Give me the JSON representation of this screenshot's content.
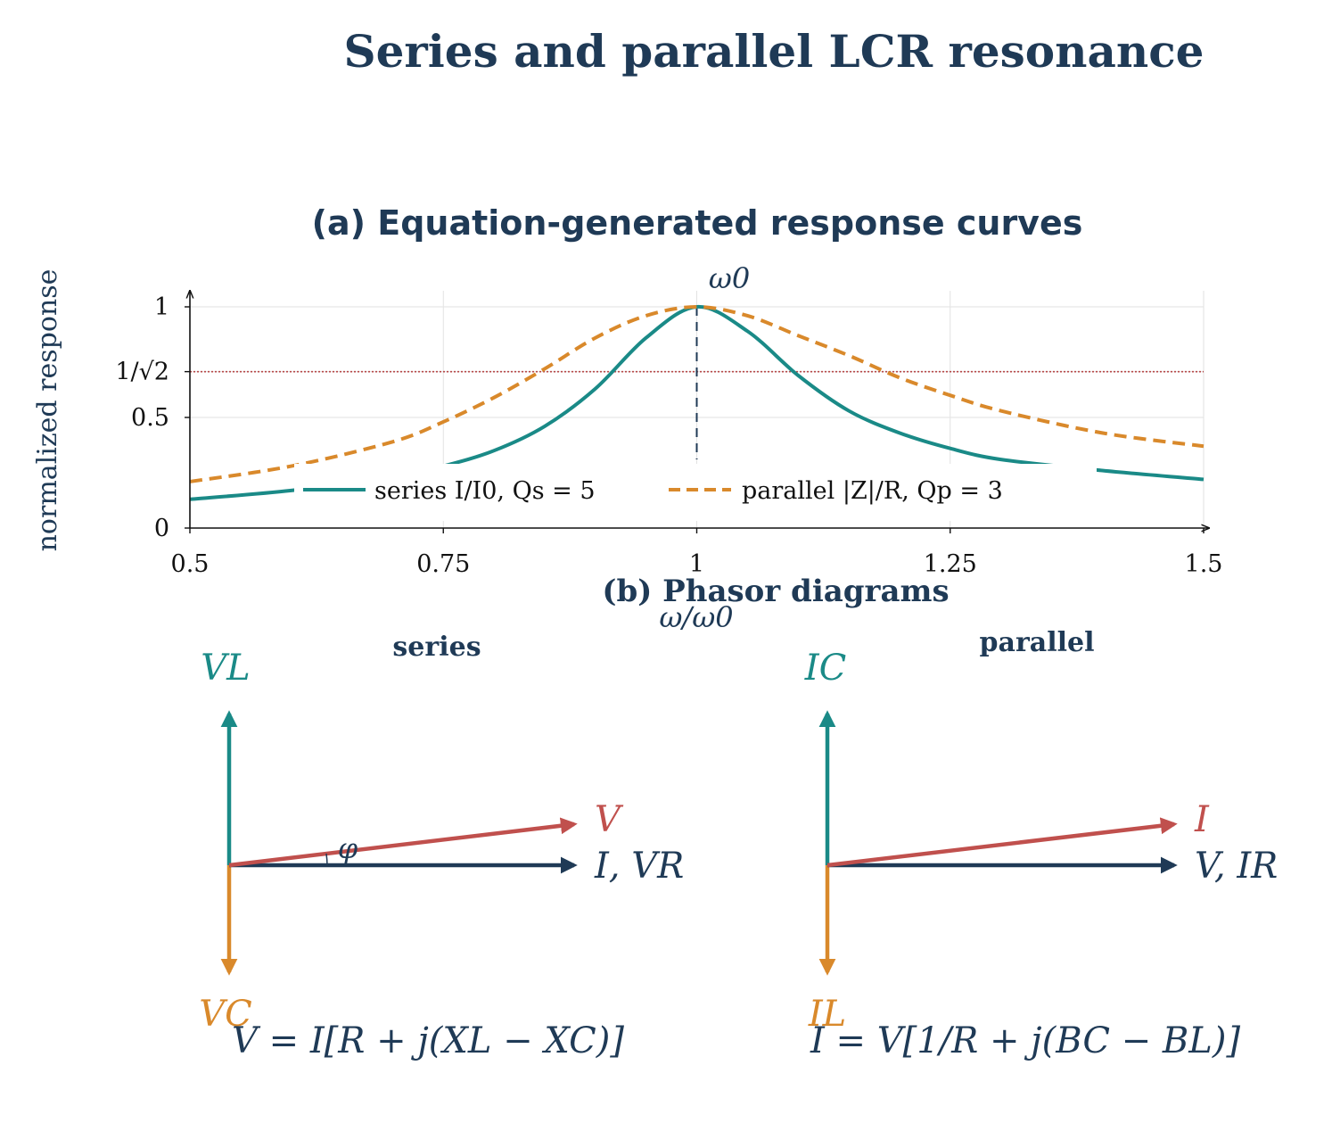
{
  "title": "Series and parallel LCR resonance",
  "panel_a": {
    "title": "(a) Equation-generated response curves",
    "peak_label": "ω0"
  },
  "chart_data": {
    "type": "line",
    "xlabel": "ω/ω0",
    "ylabel": "normalized response",
    "xlim": [
      0.5,
      1.5
    ],
    "ylim": [
      0,
      1.05
    ],
    "x_ticks": [
      "0.5",
      "0.75",
      "1",
      "1.25",
      "1.5"
    ],
    "y_ticks": [
      "0",
      "0.5",
      "1/√2",
      "1"
    ],
    "reference_line": {
      "y": 0.7071,
      "color": "#b84a4a",
      "style": "dotted"
    },
    "marker_line": {
      "x": 1.0,
      "label": "ω0",
      "style": "dashed"
    },
    "legend_position": "lower-center",
    "grid": true,
    "series": [
      {
        "name": "series I/I0, Qs = 5",
        "color": "#1a8a87",
        "style": "solid",
        "x": [
          0.5,
          0.6,
          0.7,
          0.75,
          0.8,
          0.85,
          0.9,
          0.95,
          1.0,
          1.05,
          1.1,
          1.15,
          1.2,
          1.25,
          1.3,
          1.4,
          1.5
        ],
        "y": [
          0.13,
          0.17,
          0.23,
          0.28,
          0.35,
          0.46,
          0.63,
          0.86,
          1.0,
          0.89,
          0.69,
          0.53,
          0.43,
          0.36,
          0.31,
          0.26,
          0.22
        ]
      },
      {
        "name": "parallel |Z|/R, Qp = 3",
        "color": "#d9892b",
        "style": "dashed",
        "x": [
          0.5,
          0.6,
          0.7,
          0.75,
          0.8,
          0.85,
          0.9,
          0.95,
          1.0,
          1.05,
          1.1,
          1.15,
          1.2,
          1.25,
          1.3,
          1.4,
          1.5
        ],
        "y": [
          0.21,
          0.28,
          0.39,
          0.48,
          0.59,
          0.72,
          0.86,
          0.96,
          1.0,
          0.96,
          0.87,
          0.78,
          0.68,
          0.6,
          0.53,
          0.43,
          0.37
        ]
      }
    ]
  },
  "panel_b": {
    "title": "(b) Phasor diagrams",
    "series": {
      "label": "series",
      "up_label": "VL",
      "down_label": "VC",
      "resultant_label": "V",
      "reference_label": "I, VR",
      "angle_label": "φ",
      "equation": "V = I[R + j(XL − XC)]"
    },
    "parallel": {
      "label": "parallel",
      "up_label": "IC",
      "down_label": "IL",
      "resultant_label": "I",
      "reference_label": "V, IR",
      "equation": "I = V[1/R + j(BC − BL)]"
    },
    "colors": {
      "teal": "#1a8a87",
      "orange": "#d9892b",
      "red": "#c0504d",
      "navy": "#1f3a56"
    }
  }
}
